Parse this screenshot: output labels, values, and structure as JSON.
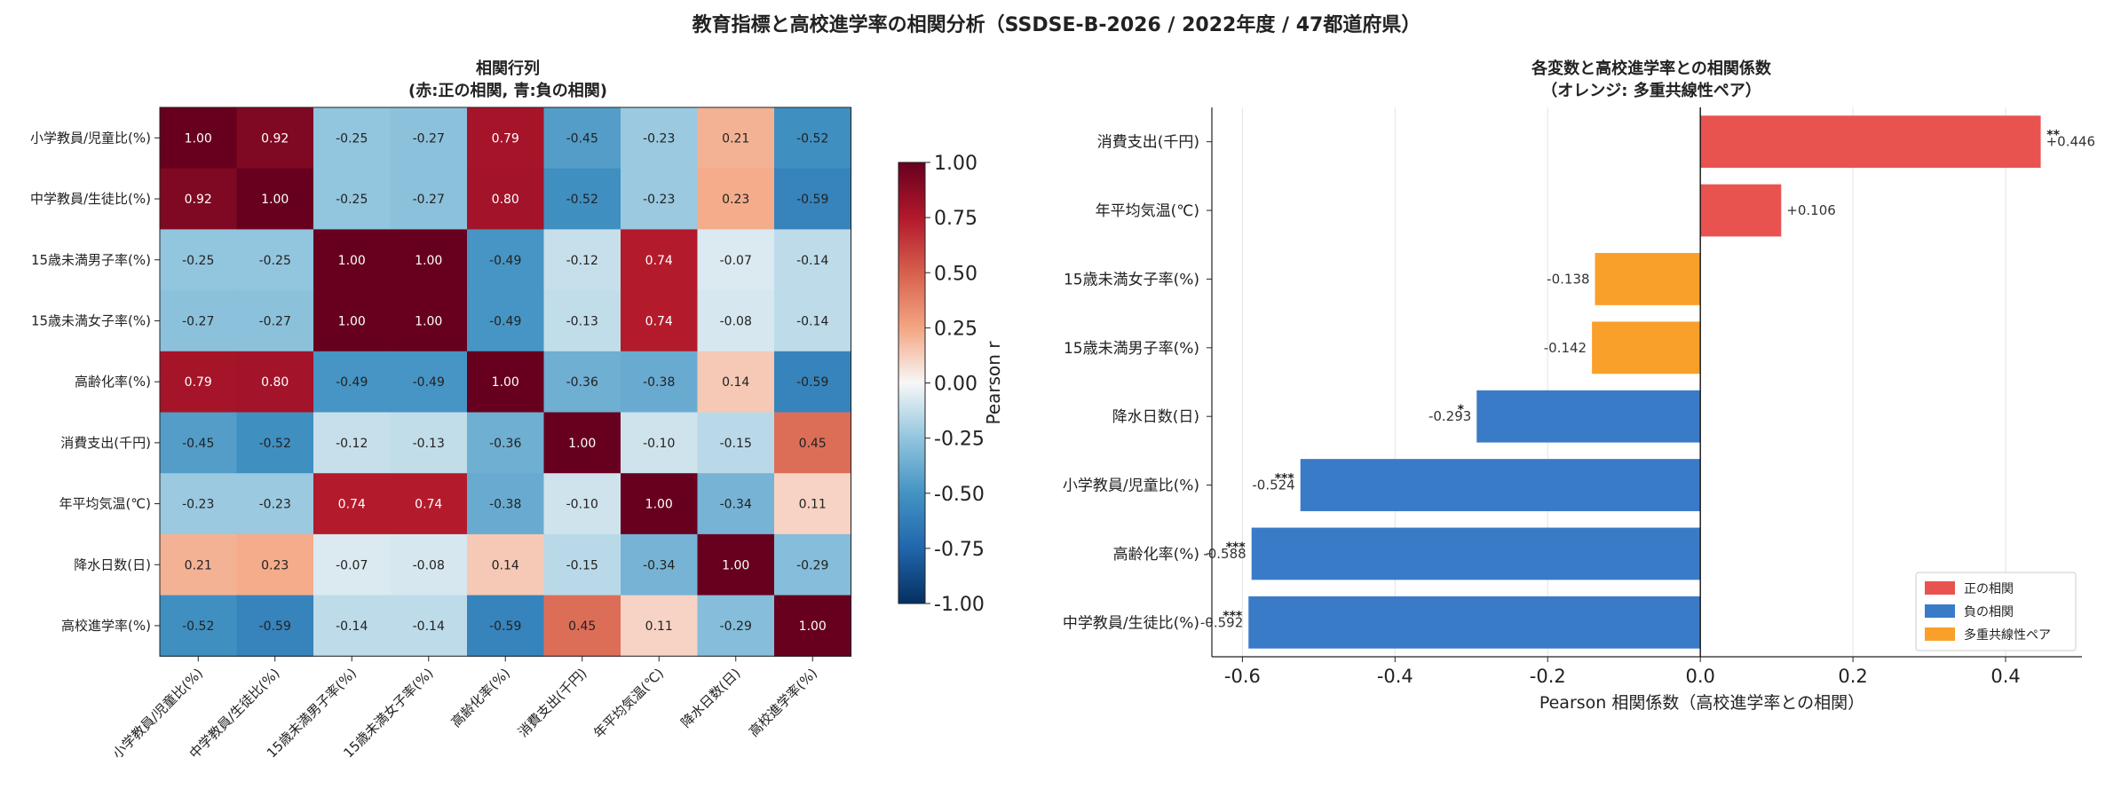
{
  "figure": {
    "suptitle": "教育指標と高校進学率の相関分析（SSDSE-B-2026 / 2022年度 / 47都道府県）"
  },
  "chart_data": [
    {
      "type": "heatmap",
      "title": "相関行列",
      "subtitle": "(赤:正の相関, 青:負の相関)",
      "rows": [
        "小学教員/児童比(%)",
        "中学教員/生徒比(%)",
        "15歳未満男子率(%)",
        "15歳未満女子率(%)",
        "高齢化率(%)",
        "消費支出(千円)",
        "年平均気温(℃)",
        "降水日数(日)",
        "高校進学率(%)"
      ],
      "columns": [
        "小学教員/児童比(%)",
        "中学教員/生徒比(%)",
        "15歳未満男子率(%)",
        "15歳未満女子率(%)",
        "高齢化率(%)",
        "消費支出(千円)",
        "年平均気温(℃)",
        "降水日数(日)",
        "高校進学率(%)"
      ],
      "values": [
        [
          1.0,
          0.92,
          -0.25,
          -0.27,
          0.79,
          -0.45,
          -0.23,
          0.21,
          -0.52
        ],
        [
          0.92,
          1.0,
          -0.25,
          -0.27,
          0.8,
          -0.52,
          -0.23,
          0.23,
          -0.59
        ],
        [
          -0.25,
          -0.25,
          1.0,
          1.0,
          -0.49,
          -0.12,
          0.74,
          -0.07,
          -0.14
        ],
        [
          -0.27,
          -0.27,
          1.0,
          1.0,
          -0.49,
          -0.13,
          0.74,
          -0.08,
          -0.14
        ],
        [
          0.79,
          0.8,
          -0.49,
          -0.49,
          1.0,
          -0.36,
          -0.38,
          0.14,
          -0.59
        ],
        [
          -0.45,
          -0.52,
          -0.12,
          -0.13,
          -0.36,
          1.0,
          -0.1,
          -0.15,
          0.45
        ],
        [
          -0.23,
          -0.23,
          0.74,
          0.74,
          -0.38,
          -0.1,
          1.0,
          -0.34,
          0.11
        ],
        [
          0.21,
          0.23,
          -0.07,
          -0.08,
          0.14,
          -0.15,
          -0.34,
          1.0,
          -0.29
        ],
        [
          -0.52,
          -0.59,
          -0.14,
          -0.14,
          -0.59,
          0.45,
          0.11,
          -0.29,
          1.0
        ]
      ],
      "colorbar": {
        "label": "Pearson r",
        "range": [
          -1.0,
          1.0
        ],
        "ticks": [
          "-1.00",
          "-0.75",
          "-0.50",
          "-0.25",
          "0.00",
          "0.25",
          "0.50",
          "0.75",
          "1.00"
        ],
        "colormap": "RdBu_r"
      }
    },
    {
      "type": "bar",
      "orientation": "horizontal",
      "title": "各変数と高校進学率との相関係数",
      "subtitle": "（オレンジ: 多重共線性ペア）",
      "xlabel": "Pearson 相関係数（高校進学率との相関）",
      "xlim": [
        -0.64,
        0.5
      ],
      "xticks": [
        "-0.6",
        "-0.4",
        "-0.2",
        "0.0",
        "0.2",
        "0.4"
      ],
      "grid": "vertical",
      "legend_position": "lower-right",
      "categories": [
        "消費支出(千円)",
        "年平均気温(℃)",
        "15歳未満女子率(%)",
        "15歳未満男子率(%)",
        "降水日数(日)",
        "小学教員/児童比(%)",
        "高齢化率(%)",
        "中学教員/生徒比(%)"
      ],
      "values": [
        0.446,
        0.106,
        -0.138,
        -0.142,
        -0.293,
        -0.524,
        -0.588,
        -0.592
      ],
      "value_labels": [
        "+0.446",
        "+0.106",
        "-0.138",
        "-0.142",
        "-0.293",
        "-0.524",
        "-0.588",
        "-0.592"
      ],
      "significance": [
        "**",
        "",
        "",
        "",
        "*",
        "***",
        "***",
        "***"
      ],
      "bar_groups": [
        "positive",
        "positive",
        "collinear",
        "collinear",
        "negative",
        "negative",
        "negative",
        "negative"
      ],
      "legend": [
        {
          "key": "positive",
          "label": "正の相関",
          "color": "#e8534f"
        },
        {
          "key": "negative",
          "label": "負の相関",
          "color": "#3a7bc8"
        },
        {
          "key": "collinear",
          "label": "多重共線性ペア",
          "color": "#f9a02a"
        }
      ]
    }
  ]
}
